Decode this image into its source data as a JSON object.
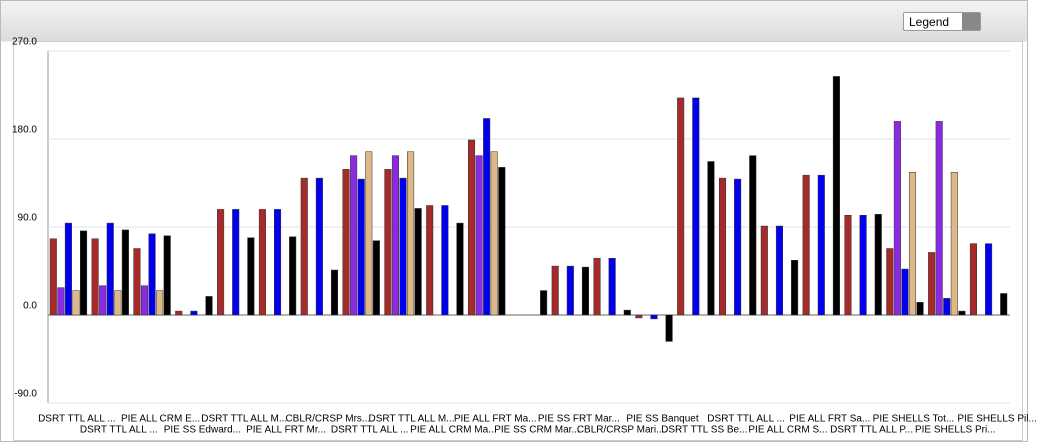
{
  "ui": {
    "legend_dropdown": "Legend"
  },
  "chart_data": {
    "type": "bar",
    "categories": [
      "DSRT TTL ALL ...",
      "DSRT TTL ALL ...",
      "PIE ALL CRM E...",
      "PIE SS Edward...",
      "DSRT TTL ALL M...",
      "PIE ALL FRT Mr...",
      "CBLR/CRSP Mrs...",
      "DSRT TTL ALL ...",
      "DSRT TTL ALL M...",
      "PIE ALL CRM Ma...",
      "PIE ALL FRT Ma...",
      "PIE SS CRM Mar...",
      "PIE SS FRT Mar...",
      "CBLR/CRSP Mari...",
      "PIE SS Banquet",
      "DSRT TTL SS Be...",
      "DSRT TTL ALL ...",
      "PIE ALL CRM S...",
      "PIE ALL FRT Sa...",
      "DSRT TTL ALL P...",
      "PIE SHELLS Tot...",
      "PIE SHELLS Pri...",
      "PIE SHELLS Pil..."
    ],
    "series": [
      {
        "color": "#a52a2a",
        "values": [
          78,
          78,
          68,
          4,
          108,
          108,
          140,
          149,
          149,
          112,
          179,
          null,
          50,
          58,
          -3,
          222,
          140,
          91,
          143,
          102,
          68,
          64,
          73
        ]
      },
      {
        "color": "#8a2be2",
        "values": [
          28,
          30,
          30,
          null,
          null,
          null,
          null,
          163,
          163,
          null,
          163,
          null,
          null,
          null,
          null,
          null,
          null,
          null,
          null,
          null,
          198,
          198,
          null
        ]
      },
      {
        "color": "#0000ee",
        "values": [
          94,
          94,
          83,
          4,
          108,
          108,
          140,
          139,
          140,
          112,
          201,
          null,
          50,
          58,
          -4,
          222,
          139,
          91,
          143,
          102,
          47,
          17,
          73
        ]
      },
      {
        "color": "#deb887",
        "values": [
          25,
          25,
          25,
          null,
          null,
          null,
          null,
          167,
          167,
          null,
          167,
          null,
          null,
          null,
          null,
          null,
          null,
          null,
          null,
          null,
          146,
          146,
          null
        ]
      },
      {
        "color": "#000000",
        "values": [
          86,
          87,
          81,
          19,
          79,
          80,
          46,
          76,
          109,
          94,
          151,
          25,
          49,
          5,
          -27,
          157,
          163,
          56,
          244,
          103,
          13,
          4,
          22
        ]
      }
    ],
    "ylim": [
      -90,
      270
    ],
    "yticks": [
      {
        "value": -90,
        "label": "-90.0"
      },
      {
        "value": 0,
        "label": "0.0"
      },
      {
        "value": 90,
        "label": "90.0"
      },
      {
        "value": 180,
        "label": "180.0"
      },
      {
        "value": 270,
        "label": "270.0"
      }
    ],
    "grid": true
  }
}
